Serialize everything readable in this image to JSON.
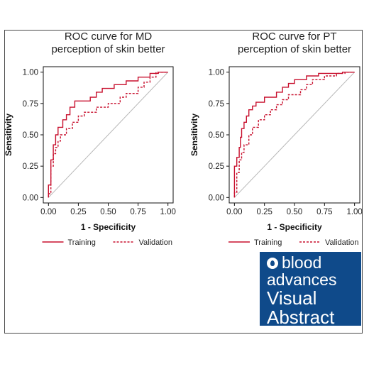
{
  "chart_data": [
    {
      "type": "line",
      "title": [
        "ROC curve for MD",
        "perception of skin better"
      ],
      "xlabel": "1 - Specificity",
      "ylabel": "Sensitivity",
      "xlim": [
        0,
        1
      ],
      "ylim": [
        0,
        1
      ],
      "xticks": [
        "0.00",
        "0.25",
        "0.50",
        "0.75",
        "1.00"
      ],
      "yticks": [
        "0.00",
        "0.25",
        "0.50",
        "0.75",
        "1.00"
      ],
      "legend_position": "bottom",
      "series": [
        {
          "name": "Training",
          "style": "solid",
          "color": "#c8102e",
          "points": [
            [
              0,
              0
            ],
            [
              0,
              0.1
            ],
            [
              0.02,
              0.1
            ],
            [
              0.02,
              0.3
            ],
            [
              0.04,
              0.3
            ],
            [
              0.04,
              0.42
            ],
            [
              0.06,
              0.42
            ],
            [
              0.06,
              0.5
            ],
            [
              0.08,
              0.5
            ],
            [
              0.08,
              0.56
            ],
            [
              0.12,
              0.56
            ],
            [
              0.12,
              0.62
            ],
            [
              0.15,
              0.62
            ],
            [
              0.15,
              0.66
            ],
            [
              0.18,
              0.66
            ],
            [
              0.18,
              0.72
            ],
            [
              0.22,
              0.72
            ],
            [
              0.22,
              0.77
            ],
            [
              0.35,
              0.77
            ],
            [
              0.35,
              0.8
            ],
            [
              0.4,
              0.8
            ],
            [
              0.4,
              0.84
            ],
            [
              0.45,
              0.84
            ],
            [
              0.45,
              0.87
            ],
            [
              0.55,
              0.87
            ],
            [
              0.55,
              0.9
            ],
            [
              0.65,
              0.9
            ],
            [
              0.65,
              0.93
            ],
            [
              0.75,
              0.93
            ],
            [
              0.75,
              0.96
            ],
            [
              0.85,
              0.96
            ],
            [
              0.85,
              0.99
            ],
            [
              0.92,
              0.99
            ],
            [
              0.92,
              1.0
            ],
            [
              1.0,
              1.0
            ]
          ]
        },
        {
          "name": "Validation",
          "style": "dashed",
          "color": "#c8102e",
          "points": [
            [
              0,
              0
            ],
            [
              0,
              0.03
            ],
            [
              0.02,
              0.03
            ],
            [
              0.02,
              0.25
            ],
            [
              0.04,
              0.25
            ],
            [
              0.04,
              0.35
            ],
            [
              0.06,
              0.35
            ],
            [
              0.06,
              0.4
            ],
            [
              0.08,
              0.4
            ],
            [
              0.08,
              0.45
            ],
            [
              0.1,
              0.45
            ],
            [
              0.1,
              0.5
            ],
            [
              0.15,
              0.5
            ],
            [
              0.15,
              0.55
            ],
            [
              0.2,
              0.55
            ],
            [
              0.2,
              0.6
            ],
            [
              0.25,
              0.6
            ],
            [
              0.25,
              0.65
            ],
            [
              0.3,
              0.65
            ],
            [
              0.3,
              0.68
            ],
            [
              0.4,
              0.68
            ],
            [
              0.4,
              0.72
            ],
            [
              0.5,
              0.72
            ],
            [
              0.5,
              0.75
            ],
            [
              0.6,
              0.75
            ],
            [
              0.6,
              0.8
            ],
            [
              0.65,
              0.8
            ],
            [
              0.65,
              0.83
            ],
            [
              0.75,
              0.83
            ],
            [
              0.75,
              0.88
            ],
            [
              0.8,
              0.88
            ],
            [
              0.8,
              0.92
            ],
            [
              0.85,
              0.92
            ],
            [
              0.85,
              0.96
            ],
            [
              0.9,
              0.96
            ],
            [
              0.9,
              1.0
            ],
            [
              1.0,
              1.0
            ]
          ]
        }
      ],
      "reference_line": [
        [
          0,
          0
        ],
        [
          1,
          1
        ]
      ]
    },
    {
      "type": "line",
      "title": [
        "ROC curve for PT",
        "perception of skin better"
      ],
      "xlabel": "1 - Specificity",
      "ylabel": "Sensitivity",
      "xlim": [
        0,
        1
      ],
      "ylim": [
        0,
        1
      ],
      "xticks": [
        "0.00",
        "0.25",
        "0.50",
        "0.75",
        "1.00"
      ],
      "yticks": [
        "0.00",
        "0.25",
        "0.50",
        "0.75",
        "1.00"
      ],
      "legend_position": "bottom",
      "series": [
        {
          "name": "Training",
          "style": "solid",
          "color": "#c8102e",
          "points": [
            [
              0,
              0
            ],
            [
              0,
              0.25
            ],
            [
              0.02,
              0.25
            ],
            [
              0.02,
              0.32
            ],
            [
              0.04,
              0.32
            ],
            [
              0.04,
              0.4
            ],
            [
              0.05,
              0.4
            ],
            [
              0.05,
              0.48
            ],
            [
              0.06,
              0.48
            ],
            [
              0.06,
              0.55
            ],
            [
              0.08,
              0.55
            ],
            [
              0.08,
              0.6
            ],
            [
              0.1,
              0.6
            ],
            [
              0.1,
              0.65
            ],
            [
              0.12,
              0.65
            ],
            [
              0.12,
              0.7
            ],
            [
              0.15,
              0.7
            ],
            [
              0.15,
              0.73
            ],
            [
              0.18,
              0.73
            ],
            [
              0.18,
              0.76
            ],
            [
              0.25,
              0.76
            ],
            [
              0.25,
              0.8
            ],
            [
              0.35,
              0.8
            ],
            [
              0.35,
              0.84
            ],
            [
              0.4,
              0.84
            ],
            [
              0.4,
              0.88
            ],
            [
              0.45,
              0.88
            ],
            [
              0.45,
              0.91
            ],
            [
              0.5,
              0.91
            ],
            [
              0.5,
              0.94
            ],
            [
              0.6,
              0.94
            ],
            [
              0.6,
              0.97
            ],
            [
              0.7,
              0.97
            ],
            [
              0.7,
              0.99
            ],
            [
              0.9,
              0.99
            ],
            [
              0.9,
              1.0
            ],
            [
              1.0,
              1.0
            ]
          ]
        },
        {
          "name": "Validation",
          "style": "dashed",
          "color": "#c8102e",
          "points": [
            [
              0,
              0
            ],
            [
              0,
              0.04
            ],
            [
              0.02,
              0.04
            ],
            [
              0.02,
              0.2
            ],
            [
              0.04,
              0.2
            ],
            [
              0.04,
              0.3
            ],
            [
              0.06,
              0.3
            ],
            [
              0.06,
              0.36
            ],
            [
              0.08,
              0.36
            ],
            [
              0.08,
              0.42
            ],
            [
              0.12,
              0.42
            ],
            [
              0.12,
              0.5
            ],
            [
              0.15,
              0.5
            ],
            [
              0.15,
              0.56
            ],
            [
              0.2,
              0.56
            ],
            [
              0.2,
              0.62
            ],
            [
              0.25,
              0.62
            ],
            [
              0.25,
              0.66
            ],
            [
              0.3,
              0.66
            ],
            [
              0.3,
              0.7
            ],
            [
              0.35,
              0.7
            ],
            [
              0.35,
              0.74
            ],
            [
              0.4,
              0.74
            ],
            [
              0.4,
              0.78
            ],
            [
              0.45,
              0.78
            ],
            [
              0.45,
              0.82
            ],
            [
              0.55,
              0.82
            ],
            [
              0.55,
              0.86
            ],
            [
              0.6,
              0.86
            ],
            [
              0.6,
              0.9
            ],
            [
              0.65,
              0.9
            ],
            [
              0.65,
              0.94
            ],
            [
              0.75,
              0.94
            ],
            [
              0.75,
              0.97
            ],
            [
              0.85,
              0.97
            ],
            [
              0.85,
              0.99
            ],
            [
              0.92,
              0.99
            ],
            [
              0.92,
              1.0
            ],
            [
              1.0,
              1.0
            ]
          ]
        }
      ],
      "reference_line": [
        [
          0,
          0
        ],
        [
          1,
          1
        ]
      ]
    }
  ],
  "badge": {
    "line1": "blood",
    "line2": "advances",
    "line3": "Visual",
    "line4": "Abstract",
    "icon": "blood-drop-logo-icon",
    "background": "#0f4a8a"
  }
}
